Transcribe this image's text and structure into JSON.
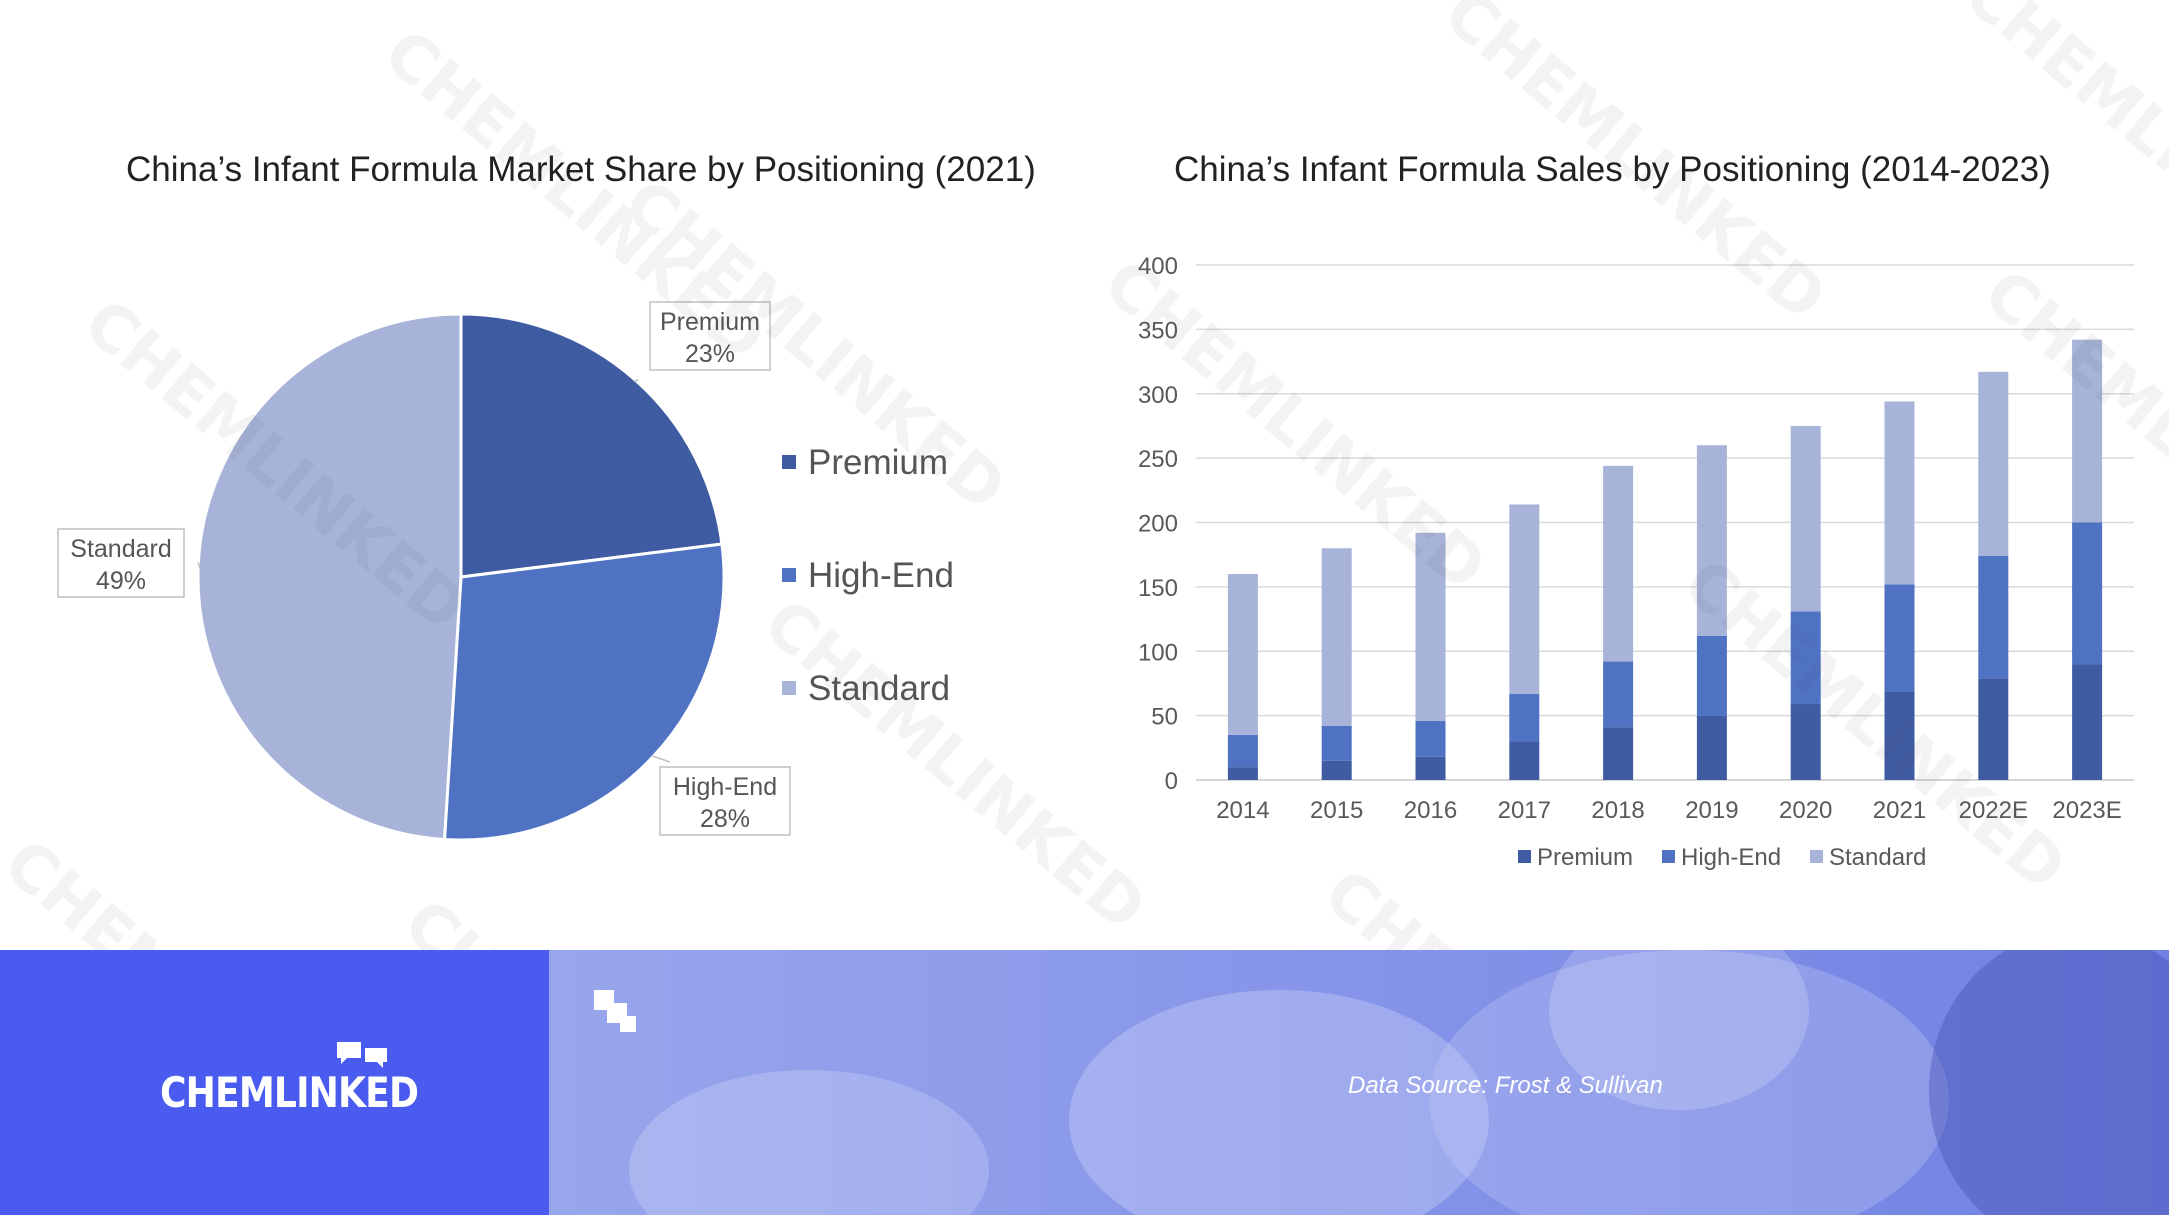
{
  "brand": {
    "name": "CHEMLINKED",
    "watermark": "CHEMLINKED"
  },
  "source": "Data Source: Frost & Sullivan",
  "colors": {
    "premium": "#3f5ba2",
    "high_end": "#4f72c3",
    "standard": "#a7b3d8",
    "footer_brand": "#4a5cf0"
  },
  "chart_data": [
    {
      "type": "pie",
      "title": "China’s Infant Formula Market Share by Positioning (2021)",
      "slices": [
        {
          "label": "Premium",
          "value": 23,
          "display": "23%"
        },
        {
          "label": "High-End",
          "value": 28,
          "display": "28%"
        },
        {
          "label": "Standard",
          "value": 49,
          "display": "49%"
        }
      ],
      "legend": [
        "Premium",
        "High-End",
        "Standard"
      ],
      "legend_position": "right"
    },
    {
      "type": "bar",
      "stacked": true,
      "title": "China’s Infant Formula Sales by Positioning (2014-2023)",
      "categories": [
        "2014",
        "2015",
        "2016",
        "2017",
        "2018",
        "2019",
        "2020",
        "2021",
        "2022E",
        "2023E"
      ],
      "series": [
        {
          "name": "Premium",
          "values": [
            10,
            15,
            18,
            30,
            41,
            50,
            59,
            69,
            79,
            90
          ]
        },
        {
          "name": "High-End",
          "values": [
            25,
            27,
            28,
            37,
            51,
            62,
            72,
            83,
            95,
            110
          ]
        },
        {
          "name": "Standard",
          "values": [
            125,
            138,
            146,
            147,
            152,
            148,
            144,
            142,
            143,
            142
          ]
        }
      ],
      "ylim": [
        0,
        400
      ],
      "yticks": [
        0,
        50,
        100,
        150,
        200,
        250,
        300,
        350,
        400
      ],
      "grid": true,
      "legend_position": "bottom"
    }
  ]
}
